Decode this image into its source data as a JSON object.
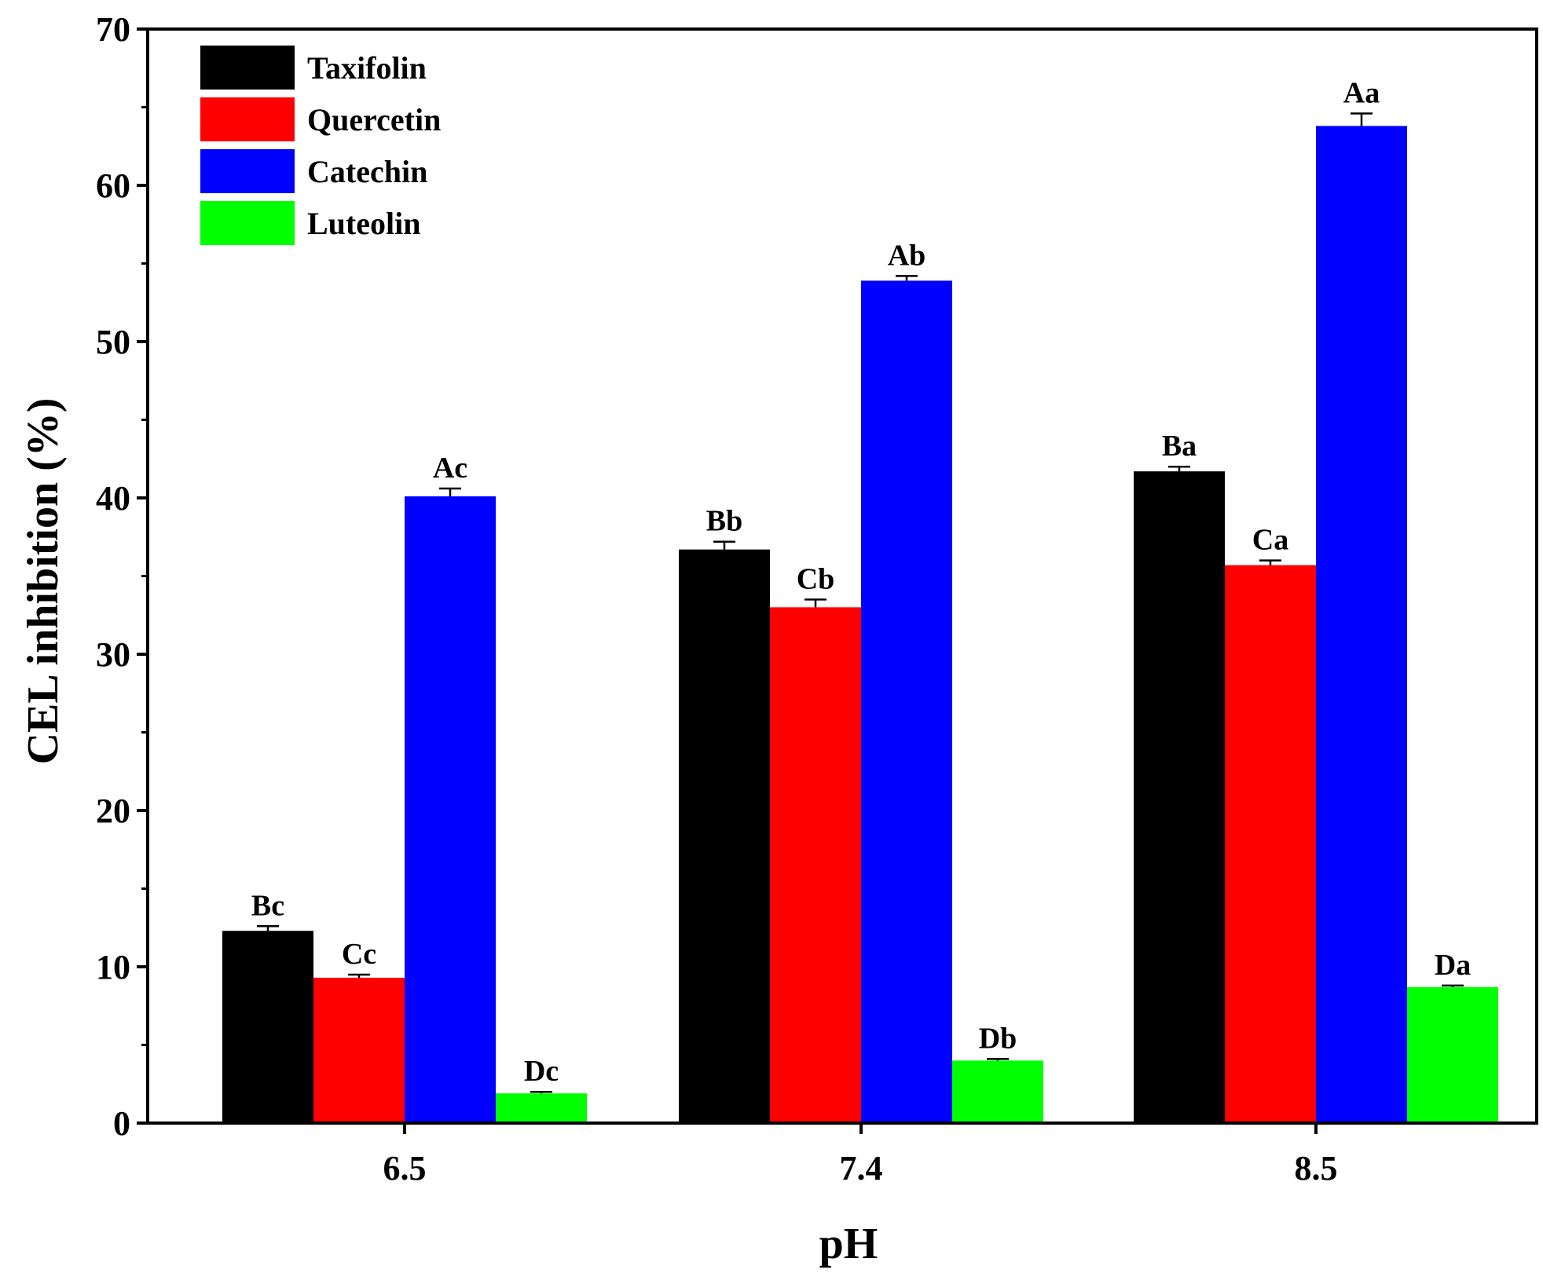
{
  "chart_data": {
    "type": "bar",
    "title": "",
    "xlabel": "pH",
    "ylabel": "CEL inhibition (%)",
    "ylim": [
      0,
      70
    ],
    "yticks": [
      0,
      10,
      20,
      30,
      40,
      50,
      60,
      70
    ],
    "categories": [
      "6.5",
      "7.4",
      "8.5"
    ],
    "legend_position": "top-left",
    "series": [
      {
        "name": "Taxifolin",
        "color": "#000000",
        "values": [
          12.3,
          36.7,
          41.7
        ],
        "errors": [
          0.3,
          0.5,
          0.3
        ],
        "labels": [
          "Bc",
          "Bb",
          "Ba"
        ]
      },
      {
        "name": "Quercetin",
        "color": "#ff0000",
        "values": [
          9.3,
          33.0,
          35.7
        ],
        "errors": [
          0.2,
          0.5,
          0.3
        ],
        "labels": [
          "Cc",
          "Cb",
          "Ca"
        ]
      },
      {
        "name": "Catechin",
        "color": "#0000ff",
        "values": [
          40.1,
          53.9,
          63.8
        ],
        "errors": [
          0.5,
          0.3,
          0.8
        ],
        "labels": [
          "Ac",
          "Ab",
          "Aa"
        ]
      },
      {
        "name": "Luteolin",
        "color": "#00ff00",
        "values": [
          1.9,
          4.0,
          8.7
        ],
        "errors": [
          0.1,
          0.1,
          0.1
        ],
        "labels": [
          "Dc",
          "Db",
          "Da"
        ]
      }
    ]
  }
}
